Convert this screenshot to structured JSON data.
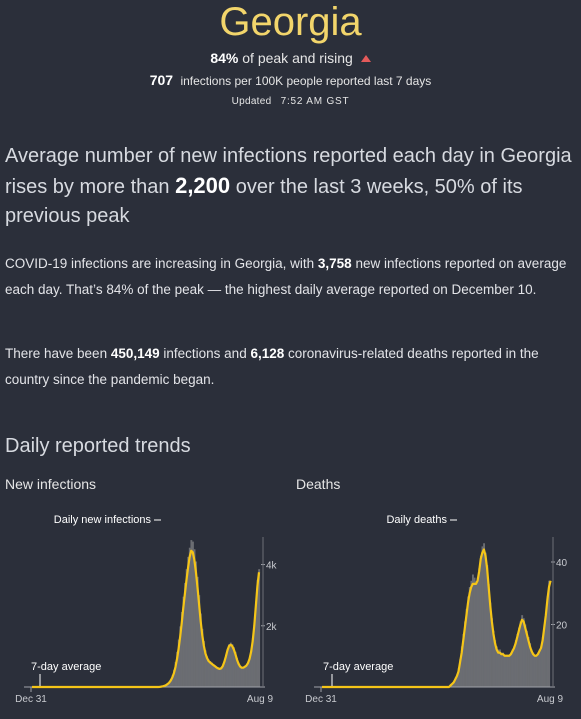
{
  "header": {
    "country": "Georgia",
    "peak_pct": "84%",
    "peak_text": "of peak and rising",
    "rate_value": "707",
    "rate_text": "infections per 100K people reported last 7 days",
    "updated_label": "Updated",
    "updated_time": "7:52 AM GST"
  },
  "headline": {
    "part1": "Average number of new infections reported each day in Georgia rises by more than ",
    "bold": "2,200",
    "part2": " over the last 3 weeks, 50% of its previous peak"
  },
  "para1": {
    "t1": "COVID-19 infections are increasing in Georgia, with ",
    "b1": "3,758",
    "t2": " new infections reported on average each day. That’s 84% of the peak — the highest daily average reported on December 10."
  },
  "para2": {
    "t1": "There have been ",
    "b1": "450,149",
    "t2": " infections and ",
    "b2": "6,128",
    "t3": " coronavirus-related deaths reported in the country since the pandemic began."
  },
  "section_title": "Daily reported trends",
  "colors": {
    "background": "#2b2f3a",
    "accent_line": "#f5c518",
    "bars": "#6b6d72",
    "title": "#f2d56b",
    "rising": "#e45a5a"
  },
  "chart_data": [
    {
      "type": "area",
      "title": "New infections",
      "daily_label": "Daily new infections",
      "avg_label": "7-day average",
      "x_start": "Dec 31",
      "x_end": "Aug 9",
      "yticks": [
        "2k",
        "4k"
      ],
      "ytick_values": [
        2000,
        4000
      ],
      "ylim": [
        0,
        4900
      ],
      "daily": [
        0,
        0,
        0,
        0,
        0,
        0,
        0,
        0,
        0,
        0,
        0,
        0,
        0,
        0,
        0,
        0,
        0,
        0,
        0,
        0,
        0,
        0,
        0,
        0,
        0,
        0,
        0,
        0,
        0,
        0,
        0,
        0,
        0,
        0,
        0,
        0,
        0,
        0,
        0,
        0,
        0,
        0,
        0,
        0,
        0,
        0,
        0,
        0,
        0,
        0,
        0,
        0,
        0,
        0,
        0,
        0,
        0,
        0,
        0,
        0,
        0,
        0,
        0,
        0,
        0,
        0,
        0,
        0,
        0,
        0,
        0,
        0,
        0,
        0,
        0,
        0,
        0,
        0,
        0,
        0,
        0,
        10,
        20,
        30,
        50,
        80,
        120,
        180,
        260,
        380,
        560,
        820,
        1150,
        1550,
        1980,
        2450,
        2950,
        3400,
        3850,
        4250,
        4550,
        4800,
        4750,
        4500,
        4100,
        3600,
        3000,
        2400,
        1900,
        1500,
        1200,
        1000,
        900,
        850,
        800,
        750,
        700,
        650,
        620,
        600,
        620,
        700,
        850,
        1050,
        1250,
        1400,
        1450,
        1400,
        1300,
        1150,
        950,
        800,
        700,
        650,
        650,
        680,
        720,
        800,
        950,
        1200,
        1600,
        2100,
        2800,
        3500,
        3850
      ],
      "avg": [
        0,
        0,
        0,
        0,
        0,
        0,
        0,
        0,
        0,
        0,
        0,
        0,
        0,
        0,
        0,
        0,
        0,
        0,
        0,
        0,
        0,
        0,
        0,
        0,
        0,
        0,
        0,
        0,
        0,
        0,
        0,
        0,
        0,
        0,
        0,
        0,
        0,
        0,
        0,
        0,
        0,
        0,
        0,
        0,
        0,
        0,
        0,
        0,
        0,
        0,
        0,
        0,
        0,
        0,
        0,
        0,
        0,
        0,
        0,
        0,
        0,
        0,
        0,
        0,
        0,
        0,
        0,
        0,
        0,
        0,
        0,
        0,
        0,
        0,
        0,
        0,
        0,
        0,
        0,
        0,
        0,
        5,
        12,
        22,
        38,
        60,
        95,
        140,
        210,
        310,
        450,
        650,
        920,
        1250,
        1650,
        2100,
        2600,
        3050,
        3500,
        3900,
        4250,
        4450,
        4400,
        4150,
        3750,
        3250,
        2700,
        2150,
        1700,
        1350,
        1100,
        950,
        850,
        800,
        760,
        720,
        680,
        640,
        610,
        590,
        610,
        680,
        820,
        1000,
        1200,
        1340,
        1380,
        1340,
        1230,
        1080,
        900,
        760,
        670,
        630,
        630,
        660,
        700,
        780,
        920,
        1150,
        1500,
        2000,
        2650,
        3300,
        3750
      ]
    },
    {
      "type": "area",
      "title": "Deaths",
      "daily_label": "Daily deaths",
      "avg_label": "7-day average",
      "x_start": "Dec 31",
      "x_end": "Aug 9",
      "yticks": [
        "20",
        "40"
      ],
      "ytick_values": [
        20,
        40
      ],
      "ylim": [
        0,
        48
      ],
      "daily": [
        0,
        0,
        0,
        0,
        0,
        0,
        0,
        0,
        0,
        0,
        0,
        0,
        0,
        0,
        0,
        0,
        0,
        0,
        0,
        0,
        0,
        0,
        0,
        0,
        0,
        0,
        0,
        0,
        0,
        0,
        0,
        0,
        0,
        0,
        0,
        0,
        0,
        0,
        0,
        0,
        0,
        0,
        0,
        0,
        0,
        0,
        0,
        0,
        0,
        0,
        0,
        0,
        0,
        0,
        0,
        0,
        0,
        0,
        0,
        0,
        0,
        0,
        0,
        0,
        0,
        0,
        0,
        0,
        0,
        0,
        0,
        0,
        0,
        0,
        0,
        0,
        0,
        0,
        0,
        0,
        0,
        1,
        1,
        2,
        3,
        4,
        6,
        9,
        13,
        17,
        21,
        25,
        29,
        32,
        34,
        36,
        35,
        34,
        35,
        38,
        42,
        45,
        46,
        43,
        39,
        33,
        27,
        22,
        18,
        15,
        13,
        12,
        12,
        11,
        11,
        10,
        10,
        10,
        10,
        11,
        12,
        13,
        15,
        17,
        19,
        21,
        23,
        22,
        20,
        18,
        16,
        14,
        12,
        11,
        10,
        10,
        11,
        12,
        13,
        16,
        20,
        24,
        29,
        34
      ],
      "avg": [
        0,
        0,
        0,
        0,
        0,
        0,
        0,
        0,
        0,
        0,
        0,
        0,
        0,
        0,
        0,
        0,
        0,
        0,
        0,
        0,
        0,
        0,
        0,
        0,
        0,
        0,
        0,
        0,
        0,
        0,
        0,
        0,
        0,
        0,
        0,
        0,
        0,
        0,
        0,
        0,
        0,
        0,
        0,
        0,
        0,
        0,
        0,
        0,
        0,
        0,
        0,
        0,
        0,
        0,
        0,
        0,
        0,
        0,
        0,
        0,
        0,
        0,
        0,
        0,
        0,
        0,
        0,
        0,
        0,
        0,
        0,
        0,
        0,
        0,
        0,
        0,
        0,
        0,
        0,
        0,
        0,
        0.5,
        1,
        1.5,
        2.5,
        3.5,
        5,
        8,
        11,
        15,
        19,
        23,
        27,
        30,
        32,
        33,
        33,
        33,
        34,
        37,
        41,
        43,
        44,
        42,
        38,
        32,
        26,
        21,
        17,
        14,
        12,
        11,
        11,
        10.5,
        10.5,
        10,
        10,
        10,
        10,
        10.5,
        11.5,
        12.5,
        14,
        16,
        18,
        20,
        21.5,
        21,
        19,
        17,
        15,
        13,
        11.5,
        10.5,
        10,
        10,
        10.5,
        11.5,
        12.5,
        15,
        19,
        23,
        28,
        32,
        34
      ]
    }
  ]
}
